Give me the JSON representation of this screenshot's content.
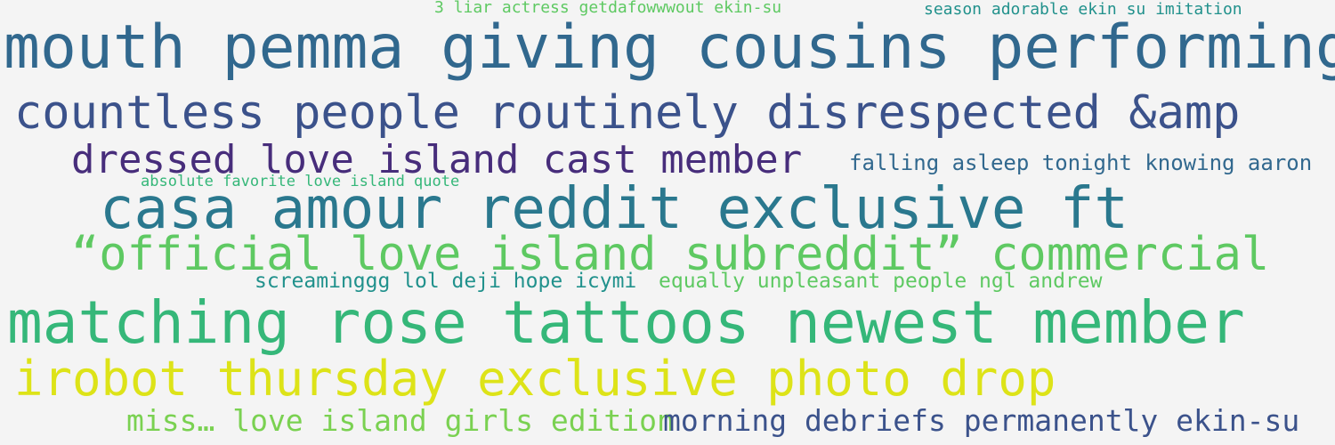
{
  "background": "#f4f4f4",
  "phrases": [
    {
      "text": "3 liar actress getdafowwwout ekin-su",
      "color": "#5ec962"
    },
    {
      "text": "season adorable ekin su imitation",
      "color": "#21918c"
    },
    {
      "text": "mouth pemma giving cousins performing",
      "color": "#31688e"
    },
    {
      "text": "countless people routinely disrespected &amp",
      "color": "#3b528b"
    },
    {
      "text": "dressed love island cast member",
      "color": "#472d7b"
    },
    {
      "text": "falling asleep tonight knowing aaron",
      "color": "#31688e"
    },
    {
      "text": "absolute favorite love island quote",
      "color": "#35b779"
    },
    {
      "text": "casa amour reddit exclusive  ft",
      "color": "#2a788e"
    },
    {
      "text": "“official love island subreddit” commercial",
      "color": "#5ec962"
    },
    {
      "text": "screaminggg lol deji hope icymi",
      "color": "#21918c"
    },
    {
      "text": "equally unpleasant people  ngl andrew",
      "color": "#5ec962"
    },
    {
      "text": "matching rose tattoos newest member",
      "color": "#35b779"
    },
    {
      "text": "irobot thursday exclusive photo drop",
      "color": "#dde318"
    },
    {
      "text": "miss… love island girls edition",
      "color": "#7ad151"
    },
    {
      "text": "morning debriefs permanently ekin-su",
      "color": "#3b528b"
    }
  ]
}
